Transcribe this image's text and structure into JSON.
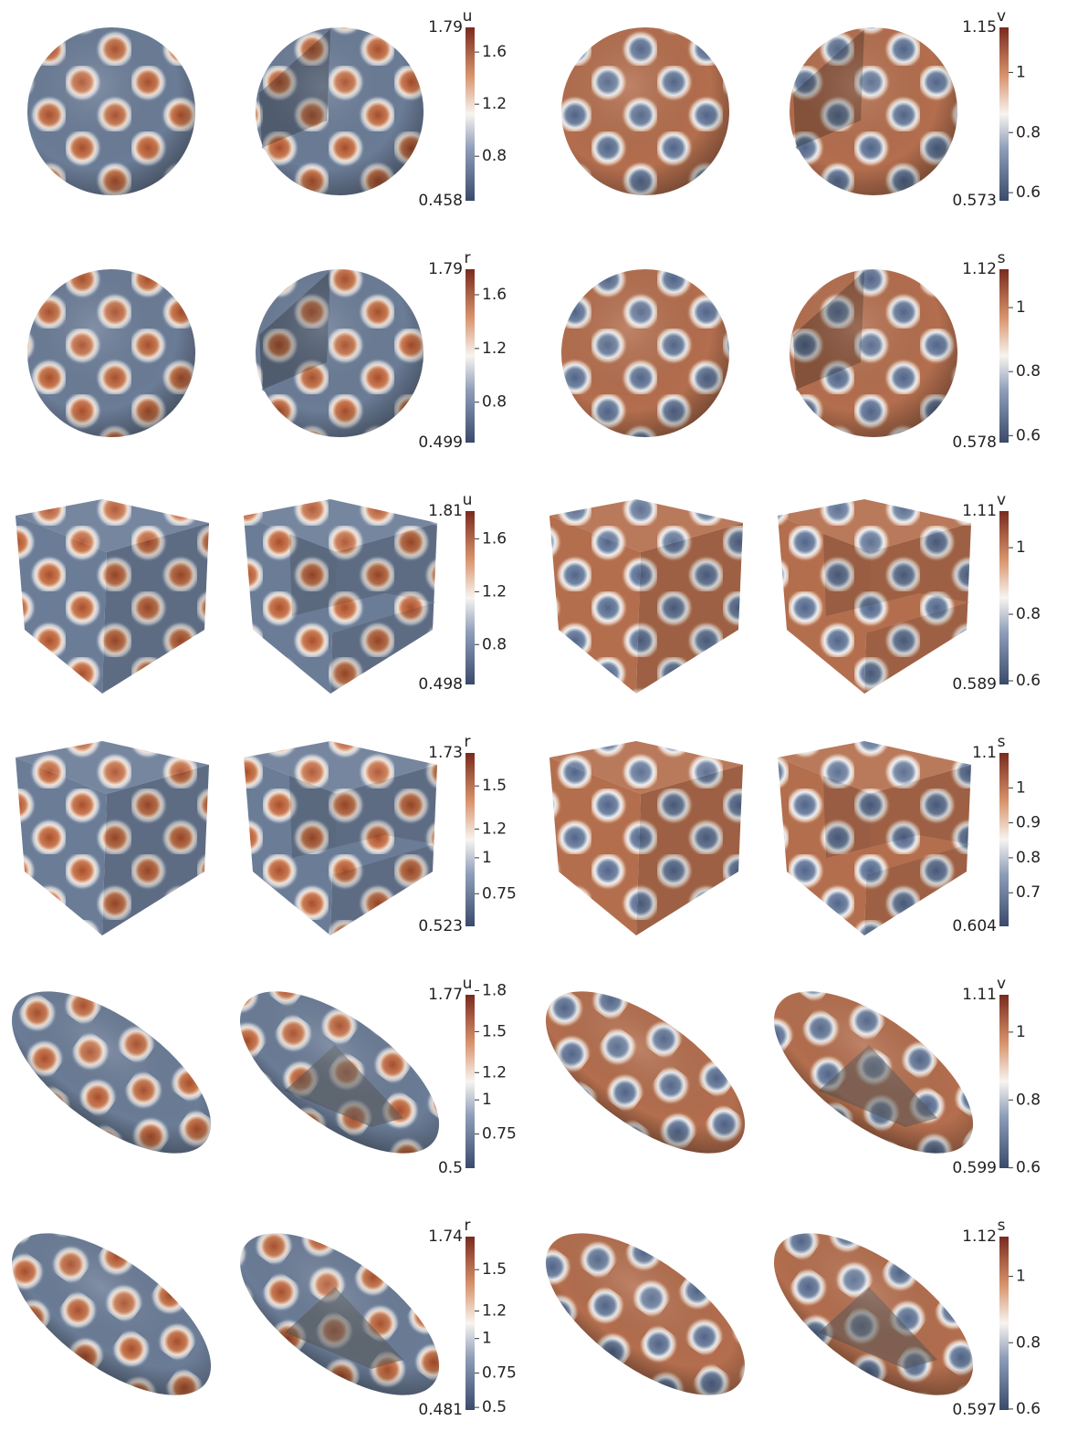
{
  "panels": [
    {
      "variable": "u",
      "max": 1.79,
      "min": 0.458,
      "ticks": [
        1.6,
        1.2,
        0.8
      ]
    },
    {
      "variable": "v",
      "max": 1.15,
      "min": 0.573,
      "ticks": [
        1,
        0.8,
        0.6
      ]
    },
    {
      "variable": "r",
      "max": 1.79,
      "min": 0.499,
      "ticks": [
        1.6,
        1.2,
        0.8
      ]
    },
    {
      "variable": "s",
      "max": 1.12,
      "min": 0.578,
      "ticks": [
        1,
        0.8,
        0.6
      ]
    },
    {
      "variable": "u",
      "max": 1.81,
      "min": 0.498,
      "ticks": [
        1.6,
        1.2,
        0.8
      ]
    },
    {
      "variable": "v",
      "max": 1.11,
      "min": 0.589,
      "ticks": [
        1,
        0.8,
        0.6
      ]
    },
    {
      "variable": "r",
      "max": 1.73,
      "min": 0.523,
      "ticks": [
        1.5,
        1.2,
        1,
        0.75
      ]
    },
    {
      "variable": "s",
      "max": 1.1,
      "min": 0.604,
      "ticks": [
        1,
        0.9,
        0.8,
        0.7
      ]
    },
    {
      "variable": "u",
      "max": 1.77,
      "min": 0.5,
      "ticks": [
        1.8,
        1.5,
        1.2,
        1,
        0.75
      ]
    },
    {
      "variable": "v",
      "max": 1.11,
      "min": 0.599,
      "ticks": [
        1,
        0.8,
        0.6
      ]
    },
    {
      "variable": "r",
      "max": 1.74,
      "min": 0.481,
      "ticks": [
        1.5,
        1.2,
        1,
        0.75,
        0.5
      ]
    },
    {
      "variable": "s",
      "max": 1.12,
      "min": 0.597,
      "ticks": [
        1,
        0.8,
        0.6
      ]
    }
  ]
}
